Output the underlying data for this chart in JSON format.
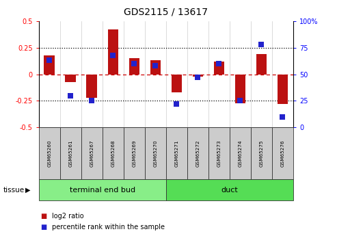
{
  "title": "GDS2115 / 13617",
  "samples": [
    "GSM65260",
    "GSM65261",
    "GSM65267",
    "GSM65268",
    "GSM65269",
    "GSM65270",
    "GSM65271",
    "GSM65272",
    "GSM65273",
    "GSM65274",
    "GSM65275",
    "GSM65276"
  ],
  "log2_ratio": [
    0.18,
    -0.07,
    -0.22,
    0.42,
    0.15,
    0.13,
    -0.17,
    -0.02,
    0.12,
    -0.27,
    0.19,
    -0.28
  ],
  "percentile_rank": [
    63,
    30,
    25,
    68,
    60,
    58,
    22,
    47,
    60,
    25,
    78,
    10
  ],
  "bar_color": "#bb1111",
  "dot_color": "#2222cc",
  "ylim_left": [
    -0.5,
    0.5
  ],
  "ylim_right": [
    0,
    100
  ],
  "yticks_left": [
    -0.5,
    -0.25,
    0.0,
    0.25,
    0.5
  ],
  "ytick_labels_left": [
    "-0.5",
    "-0.25",
    "0",
    "0.25",
    "0.5"
  ],
  "yticks_right": [
    0,
    25,
    50,
    75,
    100
  ],
  "ytick_labels_right": [
    "0",
    "25",
    "50",
    "75",
    "100%"
  ],
  "dotted_lines": [
    0.25,
    -0.25
  ],
  "zero_line_color": "#cc0000",
  "groups": [
    {
      "label": "terminal end bud",
      "start": 0,
      "end": 6,
      "color": "#88ee88"
    },
    {
      "label": "duct",
      "start": 6,
      "end": 12,
      "color": "#55dd55"
    }
  ],
  "tissue_label": "tissue",
  "legend_items": [
    {
      "label": "log2 ratio",
      "color": "#bb1111"
    },
    {
      "label": "percentile rank within the sample",
      "color": "#2222cc"
    }
  ],
  "sample_box_color": "#cccccc",
  "background_color": "#ffffff",
  "bar_width": 0.5
}
